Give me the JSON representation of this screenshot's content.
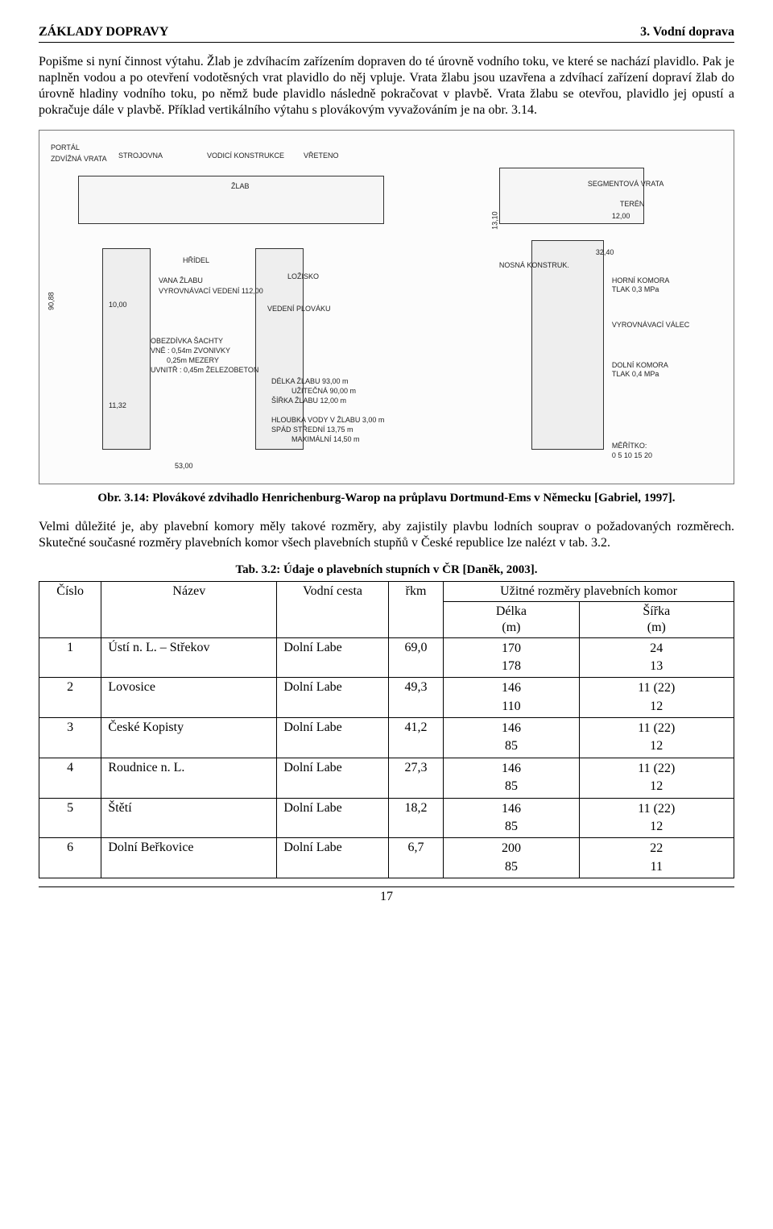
{
  "header": {
    "left": "ZÁKLADY DOPRAVY",
    "right": "3. Vodní doprava"
  },
  "paragraph1": "Popišme si nyní činnost výtahu. Žlab je zdvíhacím zařízením dopraven do té úrovně vodního toku, ve které se nachází plavidlo. Pak je naplněn vodou a po otevření vodotěsných vrat plavidlo do něj vpluje. Vrata žlabu jsou uzavřena a zdvíhací zařízení dopraví žlab do úrovně hladiny vodního toku, po němž bude plavidlo následně pokračovat v plavbě. Vrata žlabu se otevřou, plavidlo jej opustí a pokračuje dále v plavbě. Příklad vertikálního výtahu s plovákovým vyvažováním je na obr. 3.14.",
  "figure": {
    "caption": "Obr. 3.14: Plovákové zdvihadlo Henrichenburg-Warop na průplavu Dortmund-Ems v Německu [Gabriel, 1997].",
    "labels": [
      "PORTÁL",
      "ZDVÍŽNÁ VRATA",
      "STROJOVNA",
      "VODICÍ KONSTRUKCE",
      "VŘETENO",
      "ŽLAB",
      "SEGMENTOVÁ VRATA",
      "TERÉN",
      "HŘÍDEL",
      "LOŽISKO",
      "VANA ŽLABU",
      "VYROVNÁVACÍ VEDENÍ 112,00",
      "VEDENÍ PLOVÁKU",
      "OBEZDÍVKA ŠACHTY",
      "VNĚ : 0,54m ZVONIVKY",
      "0,25m MEZERY",
      "UVNITŘ : 0,45m ŽELEZOBETON",
      "DÉLKA ŽLABU 93,00 m",
      "UŽITEČNÁ 90,00 m",
      "ŠÍŘKA ŽLABU 12,00 m",
      "UŽITEČNÁ",
      "HLOUBKA VODY V ŽLABU 3,00 m",
      "SPÁD STŘEDNÍ 13,75 m",
      "MAXIMÁLNÍ 14,50 m",
      "NOSNÁ KONSTRUK.",
      "HORNÍ KOMORA TLAK 0,3 MPa",
      "VYROVNÁVACÍ VÁLEC",
      "DOLNÍ KOMORA TLAK 0,4 MPa",
      "MĚŘÍTKO:",
      "0 5 10 15 20"
    ],
    "dims": [
      "90,88",
      "13,10",
      "12,00",
      "32,40",
      "10,00",
      "11,32",
      "53,00"
    ]
  },
  "paragraph2": "Velmi důležité je, aby plavební komory měly takové rozměry, aby zajistily plavbu lodních souprav o požadovaných rozměrech. Skutečné současné rozměry plavebních komor všech plavebních stupňů v České republice lze nalézt v tab. 3.2.",
  "table": {
    "caption": "Tab. 3.2: Údaje o plavebních stupních v ČR [Daněk, 2003].",
    "head": {
      "cislo": "Číslo",
      "nazev": "Název",
      "vodni_cesta": "Vodní cesta",
      "rkm": "řkm",
      "uzitne": "Užitné rozměry plavebních komor",
      "delka": "Délka",
      "sirka": "Šířka",
      "unit": "(m)"
    },
    "rows": [
      {
        "n": "1",
        "nazev": "Ústí n. L. – Střekov",
        "cesta": "Dolní Labe",
        "rkm": "69,0",
        "delka": [
          "170",
          "178"
        ],
        "sirka": [
          "24",
          "13"
        ]
      },
      {
        "n": "2",
        "nazev": "Lovosice",
        "cesta": "Dolní Labe",
        "rkm": "49,3",
        "delka": [
          "146",
          "110"
        ],
        "sirka": [
          "11 (22)",
          "12"
        ]
      },
      {
        "n": "3",
        "nazev": "České Kopisty",
        "cesta": "Dolní Labe",
        "rkm": "41,2",
        "delka": [
          "146",
          "85"
        ],
        "sirka": [
          "11 (22)",
          "12"
        ]
      },
      {
        "n": "4",
        "nazev": "Roudnice n. L.",
        "cesta": "Dolní Labe",
        "rkm": "27,3",
        "delka": [
          "146",
          "85"
        ],
        "sirka": [
          "11 (22)",
          "12"
        ]
      },
      {
        "n": "5",
        "nazev": "Štětí",
        "cesta": "Dolní Labe",
        "rkm": "18,2",
        "delka": [
          "146",
          "85"
        ],
        "sirka": [
          "11 (22)",
          "12"
        ]
      },
      {
        "n": "6",
        "nazev": "Dolní Beřkovice",
        "cesta": "Dolní Labe",
        "rkm": "6,7",
        "delka": [
          "200",
          "85"
        ],
        "sirka": [
          "22",
          "11"
        ]
      }
    ]
  },
  "page_number": "17"
}
